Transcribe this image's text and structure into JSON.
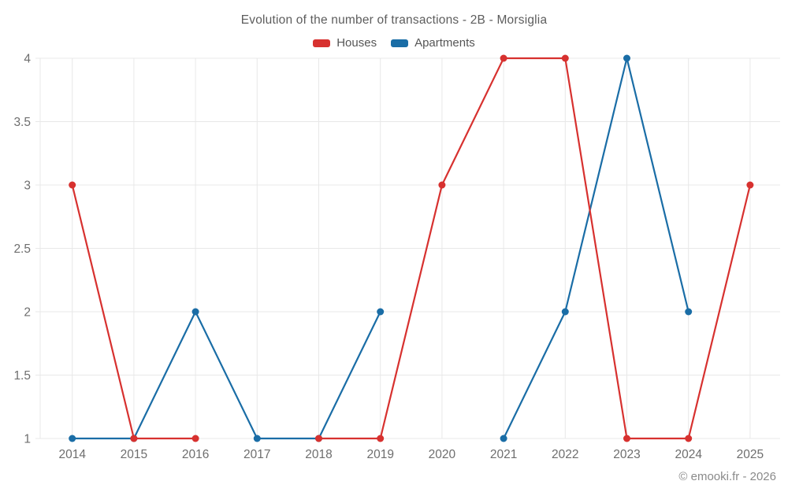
{
  "watermark": "© emooki.fr - 2026",
  "chart_data": {
    "type": "line",
    "title": "Evolution of the number of transactions - 2B - Morsiglia",
    "categories": [
      "2014",
      "2015",
      "2016",
      "2017",
      "2018",
      "2019",
      "2020",
      "2021",
      "2022",
      "2023",
      "2024",
      "2025"
    ],
    "series": [
      {
        "name": "Apartments",
        "color": "#1a6da6",
        "values": [
          1,
          1,
          2,
          1,
          1,
          2,
          null,
          1,
          2,
          4,
          2,
          null
        ]
      },
      {
        "name": "Houses",
        "color": "#d7312f",
        "values": [
          3,
          1,
          1,
          null,
          1,
          1,
          3,
          4,
          4,
          1,
          1,
          3
        ]
      }
    ],
    "legend_order": [
      "Houses",
      "Apartments"
    ],
    "legend_position": "top",
    "xlabel": "",
    "ylabel": "",
    "ylim": [
      1,
      4
    ],
    "yticks": [
      1,
      1.5,
      2,
      2.5,
      3,
      3.5,
      4
    ],
    "grid": true,
    "colors": {
      "grid": "#e8e8e8",
      "tick_label": "#6e6e6e",
      "title": "#5d5d5d",
      "watermark": "#8a8a8a",
      "background": "#ffffff"
    }
  }
}
